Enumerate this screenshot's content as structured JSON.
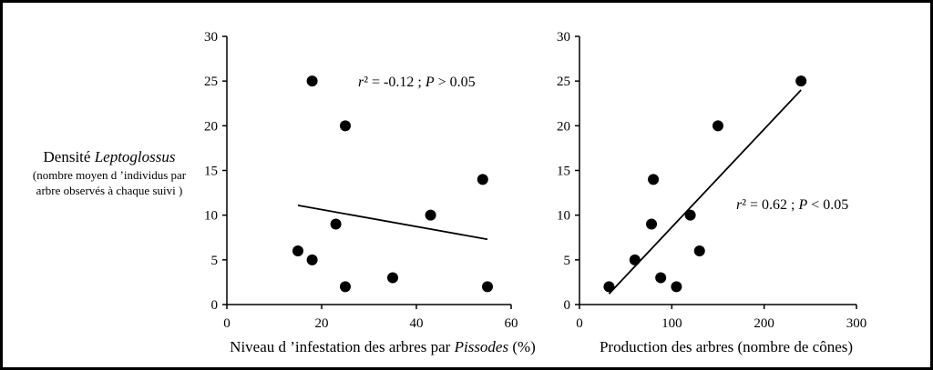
{
  "colors": {
    "ink": "#000000",
    "background": "#ffffff"
  },
  "shared_ylabel": {
    "line1_prefix": "Densité ",
    "line1_italic": "Leptoglossus",
    "line2": "(nombre moyen d ’individus par",
    "line3": "arbre observés à chaque suivi )"
  },
  "chart_data": [
    {
      "type": "scatter",
      "xlabel_prefix": "Niveau d ’infestation des arbres par ",
      "xlabel_italic": "Pissodes",
      "xlabel_suffix": " (%)",
      "xlim": [
        0,
        60
      ],
      "ylim": [
        0,
        30
      ],
      "xticks": [
        0,
        20,
        40,
        60
      ],
      "yticks": [
        0,
        5,
        10,
        15,
        20,
        25,
        30
      ],
      "points": [
        {
          "x": 18,
          "y": 25
        },
        {
          "x": 25,
          "y": 20
        },
        {
          "x": 54,
          "y": 14
        },
        {
          "x": 43,
          "y": 10
        },
        {
          "x": 23,
          "y": 9
        },
        {
          "x": 15,
          "y": 6
        },
        {
          "x": 18,
          "y": 5
        },
        {
          "x": 35,
          "y": 3
        },
        {
          "x": 25,
          "y": 2
        },
        {
          "x": 55,
          "y": 2
        }
      ],
      "trendline": {
        "x1": 15,
        "y1": 11.1,
        "x2": 55,
        "y2": 7.3
      },
      "stat": {
        "r_symbol": "r",
        "r_text": "² = -0.12 ; ",
        "p_symbol": "P",
        "p_text": " > 0.05"
      }
    },
    {
      "type": "scatter",
      "xlabel_prefix": "Production des arbres (nombre de cônes)",
      "xlabel_italic": "",
      "xlabel_suffix": "",
      "xlim": [
        0,
        300
      ],
      "ylim": [
        0,
        30
      ],
      "xticks": [
        0,
        100,
        200,
        300
      ],
      "yticks": [
        0,
        5,
        10,
        15,
        20,
        25,
        30
      ],
      "points": [
        {
          "x": 240,
          "y": 25
        },
        {
          "x": 150,
          "y": 20
        },
        {
          "x": 80,
          "y": 14
        },
        {
          "x": 120,
          "y": 10
        },
        {
          "x": 78,
          "y": 9
        },
        {
          "x": 130,
          "y": 6
        },
        {
          "x": 60,
          "y": 5
        },
        {
          "x": 88,
          "y": 3
        },
        {
          "x": 32,
          "y": 2
        },
        {
          "x": 105,
          "y": 2
        }
      ],
      "trendline": {
        "x1": 32,
        "y1": 1.2,
        "x2": 240,
        "y2": 24
      },
      "stat": {
        "r_symbol": "r",
        "r_text": "² = 0.62 ; ",
        "p_symbol": "P",
        "p_text": " < 0.05"
      }
    }
  ]
}
